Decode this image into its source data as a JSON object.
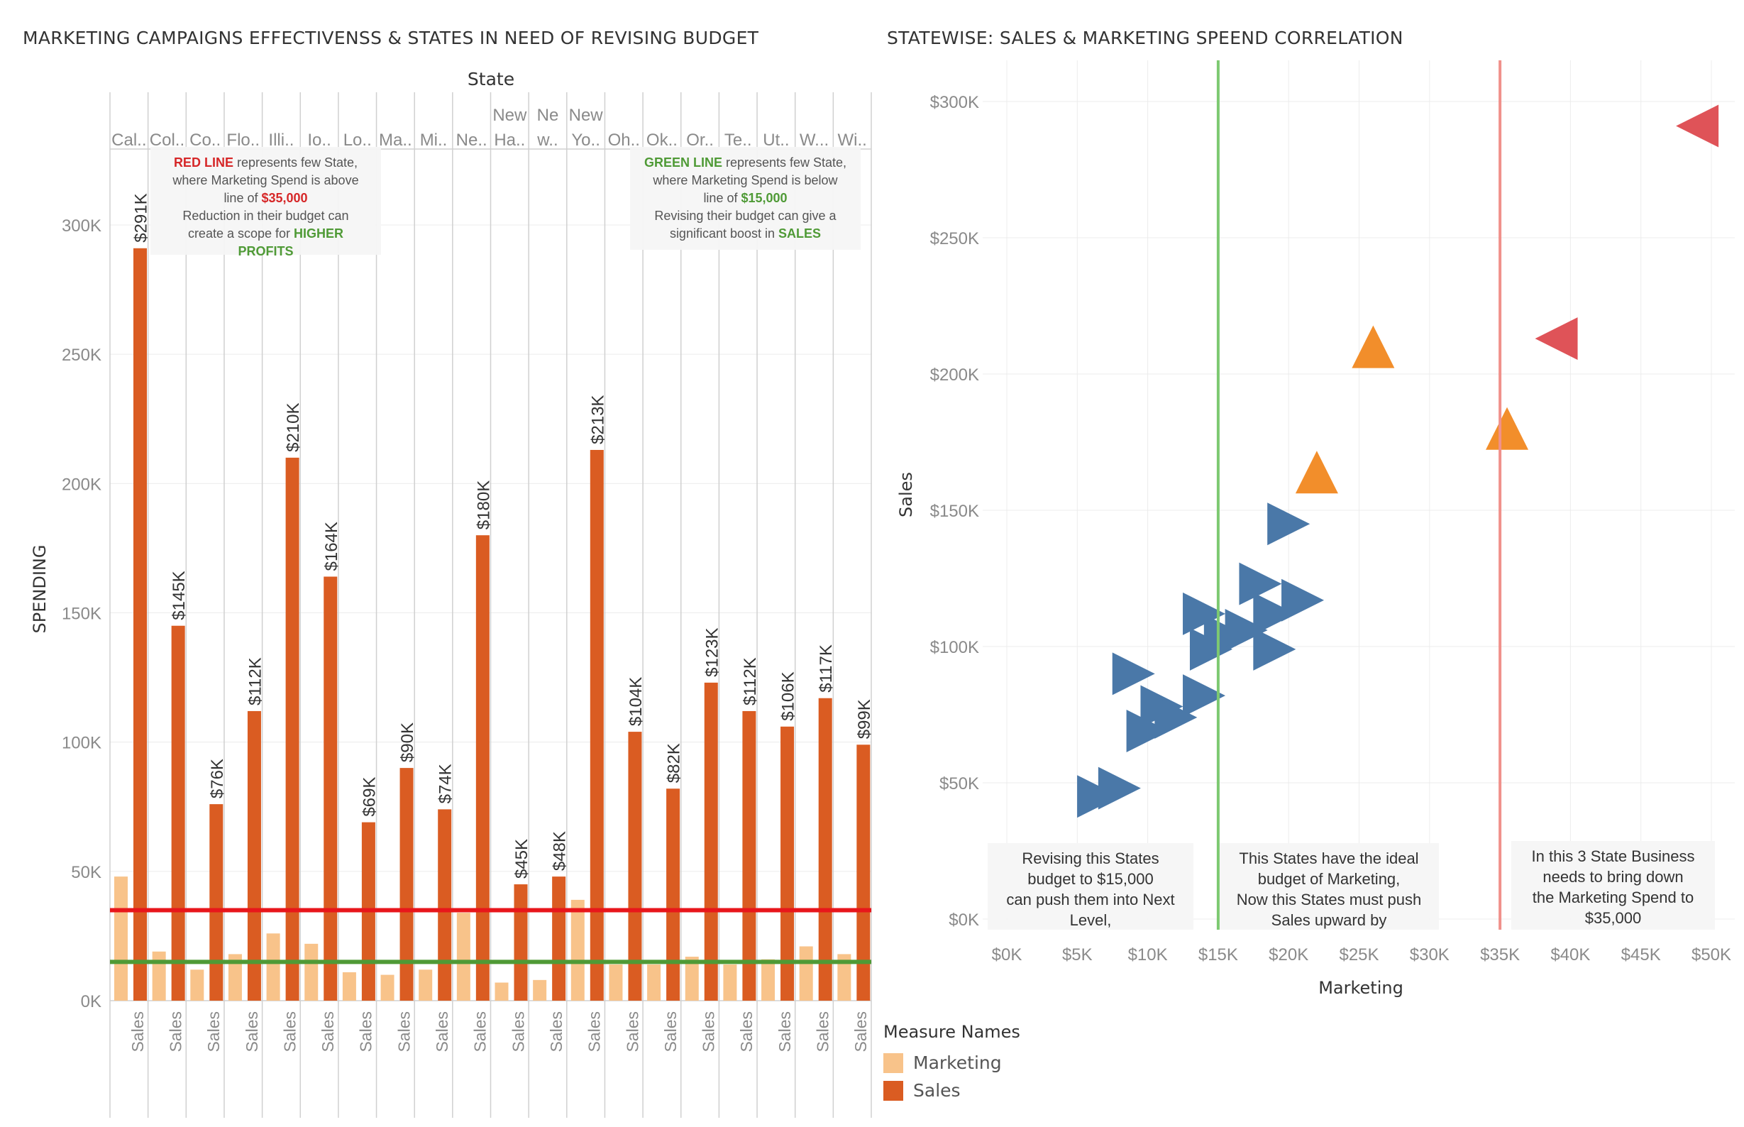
{
  "left_title": "MARKETING CAMPAIGNS EFFECTIVENSS & STATES IN NEED OF REVISING BUDGET",
  "right_title": "STATEWISE: SALES & MARKETING SPEEND CORRELATION",
  "colors": {
    "marketing": "#F8C38A",
    "sales": "#DA5C22",
    "red_line": "#E8161B",
    "green_line": "#4F9A36",
    "scatter_blue": "#4A78A8",
    "scatter_orange": "#F28E2B",
    "scatter_red": "#DF5358",
    "scatter_red_line": "#F0918B",
    "scatter_green_line": "#7DC971",
    "annotation_red": "#D62728",
    "annotation_green": "#4F9A36"
  },
  "legend": {
    "title": "Measure Names",
    "items": [
      {
        "label": "Marketing",
        "color": "#F8C38A"
      },
      {
        "label": "Sales",
        "color": "#DA5C22"
      }
    ]
  },
  "annotations_left": {
    "red_note": {
      "l1_red": "RED LINE",
      "l1_rest": " represents few State,",
      "l2": "where Marketing Spend is above",
      "l3_pre": "line of ",
      "l3_red": "$35,000",
      "l4": "Reduction in their budget can",
      "l5_pre": "create a scope for ",
      "l5_green": "HIGHER",
      "l6_green": "PROFITS"
    },
    "green_note": {
      "l1_green": "GREEN LINE",
      "l1_rest": " represents few State,",
      "l2": "where Marketing Spend is below",
      "l3_pre": "line of ",
      "l3_green": "$15,000",
      "l4": "Revising their budget can give a",
      "l5_pre": "significant boost in ",
      "l5_green": "SALES"
    }
  },
  "annotations_right": {
    "box1": [
      "Revising this States",
      "budget to $15,000",
      "can push them into Next",
      "Level,"
    ],
    "box2": [
      "This States have the ideal",
      "budget of Marketing,",
      "Now this States must push",
      "Sales upward by"
    ],
    "box3": [
      "In this 3 State Business",
      "needs to bring down",
      "the Marketing Spend to",
      "$35,000"
    ]
  },
  "chart_data": [
    {
      "type": "bar",
      "title": "MARKETING CAMPAIGNS EFFECTIVENSS & STATES IN NEED OF REVISING BUDGET",
      "column_header": "State",
      "ylabel": "SPENDING",
      "ylim": [
        0,
        300000
      ],
      "yticks": [
        "0K",
        "50K",
        "100K",
        "150K",
        "200K",
        "250K",
        "300K"
      ],
      "ytick_values": [
        0,
        50000,
        100000,
        150000,
        200000,
        250000,
        300000
      ],
      "categories": [
        "Cal..",
        "Col..",
        "Co..",
        "Flo..",
        "Illi..",
        "Io..",
        "Lo..",
        "Ma..",
        "Mi..",
        "Ne..",
        "New Ha..",
        "Ne w..",
        "New Yo..",
        "Oh..",
        "Ok..",
        "Or..",
        "Te..",
        "Ut..",
        "W..",
        "Wi.."
      ],
      "category_lines": [
        [
          "Cal.."
        ],
        [
          "Col.."
        ],
        [
          "Co.."
        ],
        [
          "Flo.."
        ],
        [
          "Illi.."
        ],
        [
          "Io.."
        ],
        [
          "Lo.."
        ],
        [
          "Ma.."
        ],
        [
          "Mi.."
        ],
        [
          "Ne.."
        ],
        [
          "New",
          "Ha.."
        ],
        [
          "Ne",
          "w.."
        ],
        [
          "New",
          "Yo.."
        ],
        [
          "Oh.."
        ],
        [
          "Ok.."
        ],
        [
          "Or.."
        ],
        [
          "Te.."
        ],
        [
          "Ut.."
        ],
        [
          "W..."
        ],
        [
          "Wi.."
        ]
      ],
      "bottom_label": "Sales",
      "series": [
        {
          "name": "Marketing",
          "values": [
            48000,
            19000,
            12000,
            18000,
            26000,
            22000,
            11000,
            10000,
            12000,
            34000,
            7000,
            8000,
            39000,
            14000,
            14000,
            17000,
            14000,
            16000,
            21000,
            18000
          ]
        },
        {
          "name": "Sales",
          "values": [
            291000,
            145000,
            76000,
            112000,
            210000,
            164000,
            69000,
            90000,
            74000,
            180000,
            45000,
            48000,
            213000,
            104000,
            82000,
            123000,
            112000,
            106000,
            117000,
            99000
          ],
          "labels": [
            "$291K",
            "$145K",
            "$76K",
            "$112K",
            "$210K",
            "$164K",
            "$69K",
            "$90K",
            "$74K",
            "$180K",
            "$45K",
            "$48K",
            "$213K",
            "$104K",
            "$82K",
            "$123K",
            "$112K",
            "$106K",
            "$117K",
            "$99K"
          ]
        }
      ],
      "reference_lines": [
        {
          "value": 35000,
          "color": "#E8161B"
        },
        {
          "value": 15000,
          "color": "#4F9A36"
        }
      ],
      "grid": true
    },
    {
      "type": "scatter",
      "title": "STATEWISE: SALES & MARKETING SPEEND CORRELATION",
      "xlabel": "Marketing",
      "ylabel": "Sales",
      "xlim": [
        0,
        50000
      ],
      "ylim": [
        0,
        300000
      ],
      "xticks": [
        "$0K",
        "$5K",
        "$10K",
        "$15K",
        "$20K",
        "$25K",
        "$30K",
        "$35K",
        "$40K",
        "$45K",
        "$50K"
      ],
      "xtick_values": [
        0,
        5000,
        10000,
        15000,
        20000,
        25000,
        30000,
        35000,
        40000,
        45000,
        50000
      ],
      "yticks": [
        "$0K",
        "$50K",
        "$100K",
        "$150K",
        "$200K",
        "$250K",
        "$300K"
      ],
      "ytick_values": [
        0,
        50000,
        100000,
        150000,
        200000,
        250000,
        300000
      ],
      "points": [
        {
          "x": 49000,
          "y": 291000,
          "shape": "left",
          "color": "#DF5358"
        },
        {
          "x": 39000,
          "y": 213000,
          "shape": "left",
          "color": "#DF5358"
        },
        {
          "x": 26000,
          "y": 210000,
          "shape": "up",
          "color": "#F28E2B"
        },
        {
          "x": 35500,
          "y": 180000,
          "shape": "up",
          "color": "#F28E2B"
        },
        {
          "x": 22000,
          "y": 164000,
          "shape": "up",
          "color": "#F28E2B"
        },
        {
          "x": 20000,
          "y": 145000,
          "shape": "right",
          "color": "#4A78A8"
        },
        {
          "x": 18000,
          "y": 123000,
          "shape": "right",
          "color": "#4A78A8"
        },
        {
          "x": 21000,
          "y": 117000,
          "shape": "right",
          "color": "#4A78A8"
        },
        {
          "x": 14000,
          "y": 112000,
          "shape": "right",
          "color": "#4A78A8"
        },
        {
          "x": 19000,
          "y": 112000,
          "shape": "right",
          "color": "#4A78A8"
        },
        {
          "x": 17000,
          "y": 106000,
          "shape": "right",
          "color": "#4A78A8"
        },
        {
          "x": 15500,
          "y": 104000,
          "shape": "right",
          "color": "#4A78A8"
        },
        {
          "x": 14500,
          "y": 99000,
          "shape": "right",
          "color": "#4A78A8"
        },
        {
          "x": 19000,
          "y": 99000,
          "shape": "right",
          "color": "#4A78A8"
        },
        {
          "x": 9000,
          "y": 90000,
          "shape": "right",
          "color": "#4A78A8"
        },
        {
          "x": 14000,
          "y": 82000,
          "shape": "right",
          "color": "#4A78A8"
        },
        {
          "x": 11000,
          "y": 78000,
          "shape": "right",
          "color": "#4A78A8"
        },
        {
          "x": 12000,
          "y": 74000,
          "shape": "right",
          "color": "#4A78A8"
        },
        {
          "x": 10000,
          "y": 69000,
          "shape": "right",
          "color": "#4A78A8"
        },
        {
          "x": 8000,
          "y": 48000,
          "shape": "right",
          "color": "#4A78A8"
        },
        {
          "x": 6500,
          "y": 45000,
          "shape": "right",
          "color": "#4A78A8"
        }
      ],
      "reference_lines": [
        {
          "axis": "x",
          "value": 15000,
          "color": "#7DC971"
        },
        {
          "axis": "x",
          "value": 35000,
          "color": "#F0918B"
        }
      ],
      "grid": true
    }
  ]
}
